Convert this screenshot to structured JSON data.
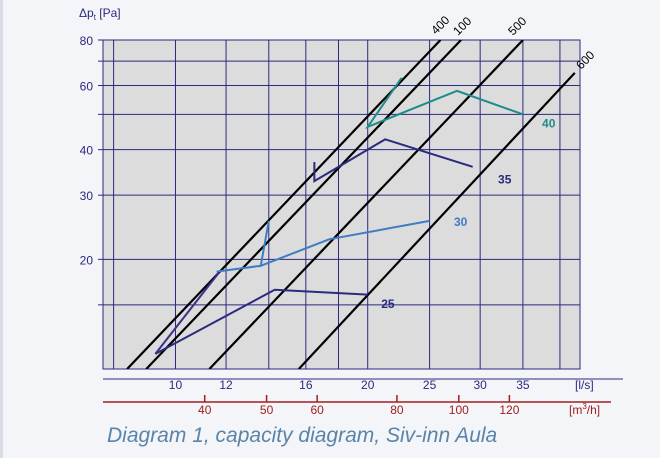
{
  "caption": "Diagram 1, capacity diagram, Siv-inn Aula",
  "colors": {
    "plot_bg": "#dcdcdc",
    "grid": "#2a2a7e",
    "axis_text": "#2a2a7e",
    "m3h_text": "#a12020",
    "m3h_axis": "#a12020",
    "lines": "#000000"
  },
  "chart_data": {
    "type": "line",
    "y_axis": {
      "label_main": "Δp",
      "label_sub": "t",
      "label_unit": " [Pa]",
      "scale": "log",
      "ylim": [
        10,
        80
      ],
      "ticks": [
        20,
        30,
        40,
        60,
        80
      ],
      "gridlines": [
        15,
        20,
        30,
        40,
        50,
        60,
        70,
        80
      ]
    },
    "x_axis": {
      "scale": "log",
      "unit": "[l/s]",
      "xlim": [
        7.7,
        43
      ],
      "ticks": [
        10,
        12,
        16,
        20,
        25,
        30,
        35
      ],
      "gridlines": [
        8,
        10,
        12,
        14,
        16,
        18,
        20,
        25,
        30,
        35,
        40
      ]
    },
    "x_axis_secondary": {
      "unit": "[m³/h]",
      "unit_main": "[m",
      "unit_sup": "3",
      "unit_tail": "/h]",
      "ticks": [
        40,
        50,
        60,
        80,
        100,
        120
      ]
    },
    "duct_lines": [
      {
        "label": "400",
        "points": [
          [
            8.4,
            10
          ],
          [
            26,
            80
          ]
        ]
      },
      {
        "label": "100",
        "points": [
          [
            9,
            10
          ],
          [
            28,
            80
          ]
        ]
      },
      {
        "label": "500",
        "points": [
          [
            11.3,
            10
          ],
          [
            35,
            80
          ]
        ]
      },
      {
        "label": "600",
        "points": [
          [
            15.6,
            10
          ],
          [
            42.2,
            65
          ]
        ]
      }
    ],
    "series": [
      {
        "name": "25",
        "color": "#2a2a7e",
        "points": [
          [
            9.3,
            11
          ],
          [
            14.3,
            16.5
          ],
          [
            20,
            16
          ]
        ],
        "label_at": [
          21,
          15.2
        ]
      },
      {
        "name": "30",
        "color": "#3e7cc4",
        "points": [
          [
            11.6,
            18.5
          ],
          [
            13.6,
            19.2
          ],
          [
            14,
            25.5
          ],
          [
            13.6,
            19.2
          ],
          [
            17.4,
            22.7
          ],
          [
            25,
            25.5
          ]
        ],
        "label_at": [
          27.3,
          25.5
        ]
      },
      {
        "name": "35",
        "color": "#2a2a7e",
        "points": [
          [
            16.5,
            37
          ],
          [
            16.5,
            32.8
          ],
          [
            21.3,
            42.7
          ],
          [
            29.2,
            35.9
          ]
        ],
        "label_at": [
          32,
          33.3
        ]
      },
      {
        "name": "40",
        "color": "#1f8c8c",
        "points": [
          [
            22.6,
            63
          ],
          [
            20,
            46.2
          ],
          [
            27.6,
            58
          ],
          [
            35,
            50
          ]
        ],
        "label_at": [
          37.5,
          47.5
        ]
      },
      {
        "name": "",
        "color": "#3d2f8a",
        "points": [
          [
            9.3,
            11
          ],
          [
            11.7,
            18.4
          ]
        ],
        "label_at": null
      }
    ]
  }
}
